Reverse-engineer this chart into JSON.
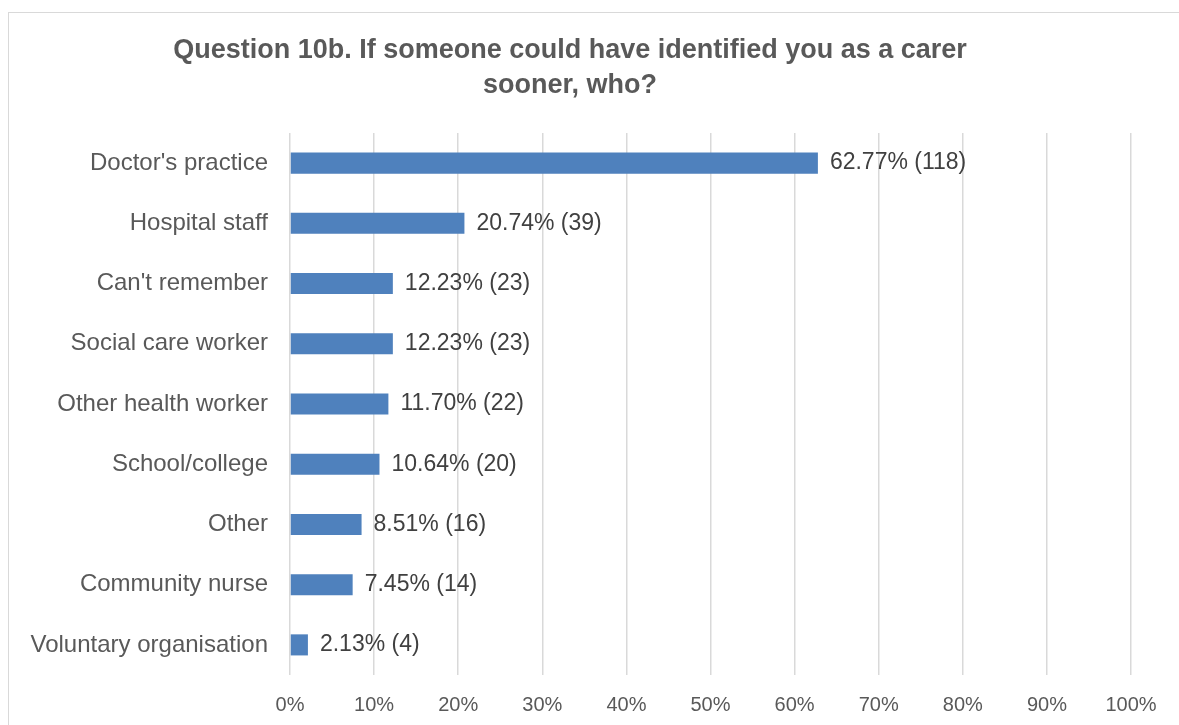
{
  "chart_data": {
    "type": "bar",
    "orientation": "horizontal",
    "title": "Question 10b. If someone could have identified you as a carer sooner, who?",
    "categories": [
      "Doctor's practice",
      "Hospital staff",
      "Can't remember",
      "Social care worker",
      "Other health worker",
      "School/college",
      "Other",
      "Community nurse",
      "Voluntary organisation"
    ],
    "values": [
      62.77,
      20.74,
      12.23,
      12.23,
      11.7,
      10.64,
      8.51,
      7.45,
      2.13
    ],
    "color": "#4f81bd",
    "value_labels": [
      "62.77% (118)",
      "20.74% (39)",
      "12.23% (23)",
      "12.23% (23)",
      "11.70% (22)",
      "10.64% (20)",
      "8.51% (16)",
      "7.45% (14)",
      "2.13% (4)"
    ],
    "xlim": [
      0,
      100
    ],
    "xticks": [
      {
        "value": 0,
        "label": "0%"
      },
      {
        "value": 10,
        "label": "10%"
      },
      {
        "value": 20,
        "label": "20%"
      },
      {
        "value": 30,
        "label": "30%"
      },
      {
        "value": 40,
        "label": "40%"
      },
      {
        "value": 50,
        "label": "50%"
      },
      {
        "value": 60,
        "label": "60%"
      },
      {
        "value": 70,
        "label": "70%"
      },
      {
        "value": 80,
        "label": "80%"
      },
      {
        "value": 90,
        "label": "90%"
      },
      {
        "value": 100,
        "label": "100%"
      }
    ],
    "grid": "x"
  }
}
